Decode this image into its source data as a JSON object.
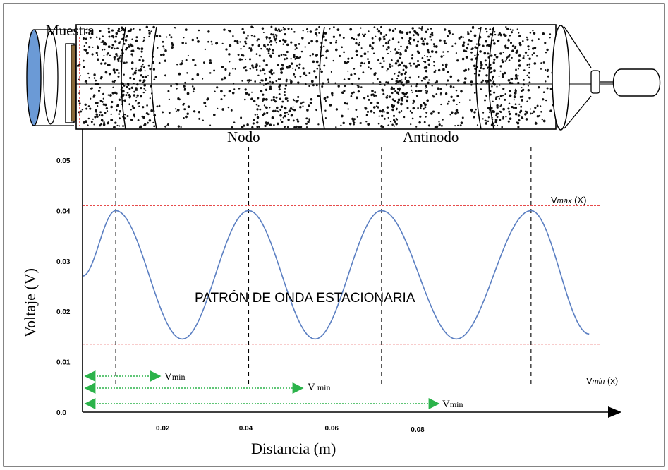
{
  "labels": {
    "muestra": "Muestra",
    "nodo": "Nodo",
    "antinodo": "Antinodo",
    "pattern_title": "PATRÓN DE ONDA ESTACIONARIA",
    "vmax_prefix": "V",
    "vmax_sub": "máx",
    "vmax_suffix": " (X)",
    "vmin_prefix": "V",
    "vmin_sub": "min",
    "vmin_suffix": " (x)",
    "vmin_arrow_1": "min",
    "vmin_arrow_2": "min",
    "vmin_arrow_3": "min",
    "vmin_arrow_v": "V"
  },
  "chart_data": {
    "type": "line",
    "xlabel": "Distancia (m)",
    "ylabel": "Voltaje (V)",
    "x_ticks": [
      "0.02",
      "0.04",
      "0.06",
      "0.08"
    ],
    "y_ticks": [
      "0.0",
      "0.01",
      "0.02",
      "0.03",
      "0.04",
      "0.05"
    ],
    "ylim": [
      0.0,
      0.05
    ],
    "vmax": 0.041,
    "vmin": 0.0135,
    "peaks_x": [
      0.008,
      0.04,
      0.072,
      0.108
    ],
    "series": [
      {
        "values_x": [
          0.0,
          0.008,
          0.024,
          0.04,
          0.056,
          0.072,
          0.09,
          0.108,
          0.122
        ],
        "values_y": [
          0.027,
          0.04,
          0.0145,
          0.04,
          0.0145,
          0.04,
          0.0145,
          0.04,
          0.0155
        ]
      }
    ]
  },
  "colors": {
    "wave": "#5b7fc2",
    "reference_lines": "#e23232",
    "arrows": "#2bb34a",
    "tube_fill": "#ffffff",
    "disk": "#6b9ad6",
    "axis": "#000000"
  }
}
